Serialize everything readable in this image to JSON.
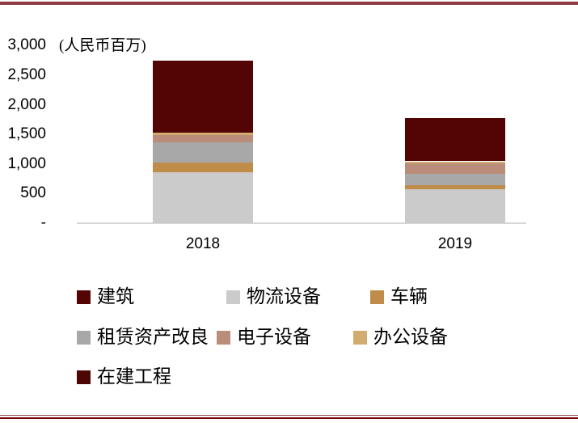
{
  "colors": {
    "top_rule": "#8d3c44",
    "bottom_rule_light": "#9c4b52",
    "bottom_rule_dark": "#75070c",
    "axis_line": "#d6d6d6",
    "text": "#000000"
  },
  "chart_data": {
    "type": "bar",
    "stacked": true,
    "title": "",
    "unit_label": "(人民币百万)",
    "xlabel": "",
    "ylabel": "",
    "ylim": [
      0,
      3000
    ],
    "grid": false,
    "legend_position": "bottom",
    "categories": [
      "2018",
      "2019"
    ],
    "y_ticks": [
      "3,000",
      "2,500",
      "2,000",
      "1,500",
      "1,000",
      "500",
      "-"
    ],
    "y_tick_values": [
      3000,
      2500,
      2000,
      1500,
      1000,
      500,
      0
    ],
    "series": [
      {
        "name": "建筑",
        "color": "#530505",
        "values": [
          1215,
          725
        ]
      },
      {
        "name": "物流设备",
        "color": "#cbcbcb",
        "values": [
          860,
          570
        ]
      },
      {
        "name": "车辆",
        "color": "#bf8c49",
        "values": [
          170,
          70
        ]
      },
      {
        "name": "租赁资产改良",
        "color": "#a8a8a8",
        "values": [
          335,
          190
        ]
      },
      {
        "name": "电子设备",
        "color": "#b98d79",
        "values": [
          125,
          180
        ]
      },
      {
        "name": "办公设备",
        "color": "#d2ab70",
        "values": [
          35,
          35
        ]
      },
      {
        "name": "在建工程",
        "color": "#4d0606",
        "values": [
          0,
          0
        ]
      }
    ],
    "stack_order": [
      "物流设备",
      "车辆",
      "租赁资产改良",
      "电子设备",
      "办公设备",
      "建筑",
      "在建工程"
    ],
    "totals": [
      2740,
      1770
    ],
    "legend_rows": [
      [
        "建筑",
        "物流设备",
        "车辆"
      ],
      [
        "租赁资产改良",
        "电子设备",
        "办公设备"
      ],
      [
        "在建工程"
      ]
    ]
  }
}
